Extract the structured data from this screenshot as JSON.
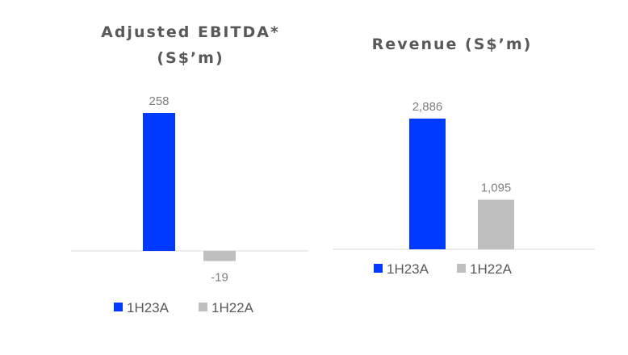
{
  "chart_data": [
    {
      "type": "bar",
      "title_lines": [
        "Adjusted EBITDA*",
        "(S$’m)"
      ],
      "categories": [
        "1H23A",
        "1H22A"
      ],
      "values": [
        258,
        -19
      ],
      "data_labels": [
        "258",
        "-19"
      ],
      "colors": [
        "#0039FF",
        "#BFBFBF"
      ],
      "legend": [
        "1H23A",
        "1H22A"
      ],
      "legend_position": "bottom",
      "grid": false
    },
    {
      "type": "bar",
      "title_lines": [
        "Revenue (S$’m)"
      ],
      "categories": [
        "1H23A",
        "1H22A"
      ],
      "values": [
        2886,
        1095
      ],
      "data_labels": [
        "2,886",
        "1,095"
      ],
      "colors": [
        "#0039FF",
        "#BFBFBF"
      ],
      "legend": [
        "1H23A",
        "1H22A"
      ],
      "legend_position": "bottom",
      "grid": false
    }
  ]
}
